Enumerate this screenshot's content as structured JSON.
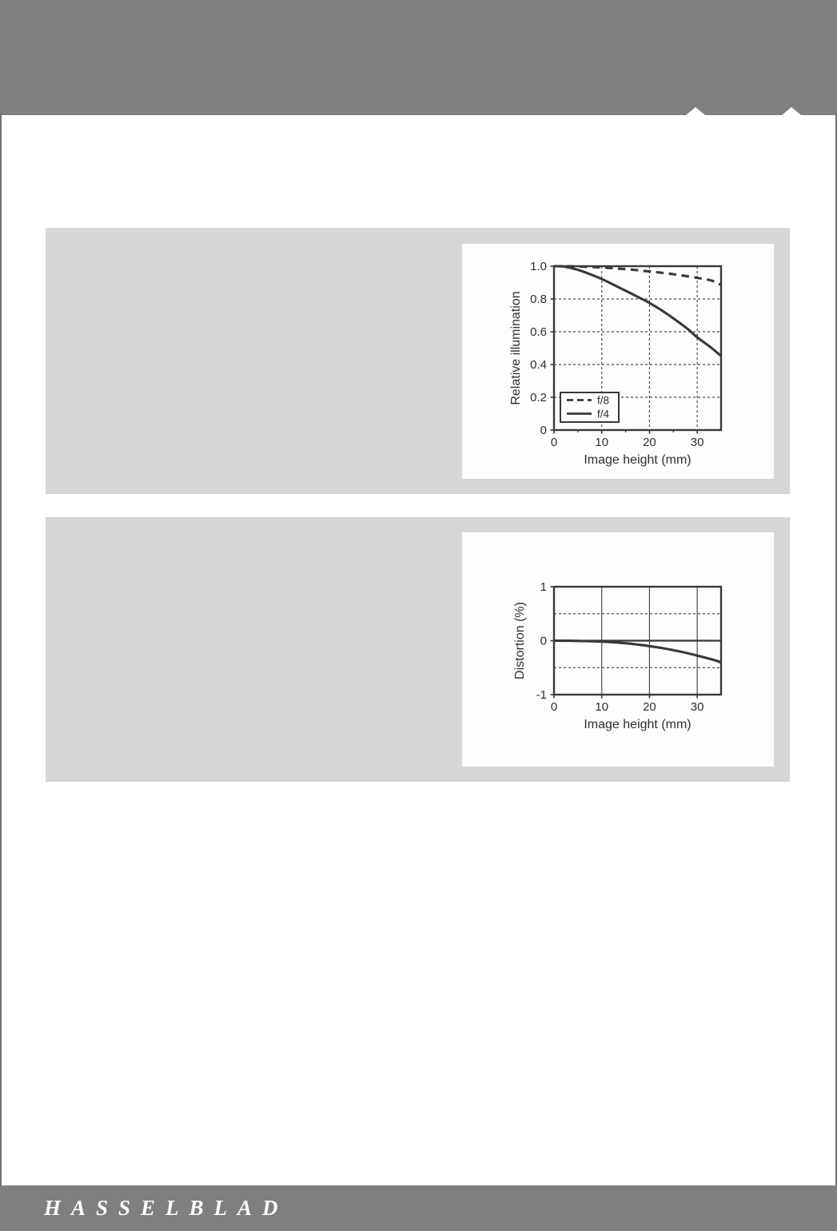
{
  "page": {
    "band_color": "#7d7f80",
    "panel_color": "#d5d6d8",
    "edge_line_color": "#6e7071",
    "chart_background": "#fdfdfd",
    "chart_ink": "#383838",
    "chart_grid_color": "#4d4d4d",
    "chart_text_color": "#2e2e2e",
    "footer": {
      "logo": "HASSELBLAD",
      "text_color": "#ffffff"
    }
  },
  "chart_data": [
    {
      "type": "line",
      "title": "",
      "xlabel": "Image height (mm)",
      "ylabel": "Relative illumination",
      "xlim": [
        0,
        35
      ],
      "ylim": [
        0,
        1
      ],
      "grid": "dashed",
      "legend_position": "lower-left",
      "xticks": [
        {
          "v": 0,
          "label": "0"
        },
        {
          "v": 10,
          "label": "10"
        },
        {
          "v": 20,
          "label": "20"
        },
        {
          "v": 30,
          "label": "30"
        }
      ],
      "xticks_minor": [
        5,
        15,
        25
      ],
      "yticks": [
        {
          "v": 0,
          "label": "0"
        },
        {
          "v": 0.2,
          "label": "0.2"
        },
        {
          "v": 0.4,
          "label": "0.4"
        },
        {
          "v": 0.6,
          "label": "0.6"
        },
        {
          "v": 0.8,
          "label": "0.8"
        },
        {
          "v": 1,
          "label": "1.0"
        }
      ],
      "grid_vertical": [
        10,
        20,
        30
      ],
      "grid_horizontal": [
        0.2,
        0.4,
        0.6,
        0.8
      ],
      "grid_style": {
        "vertical": "dashed",
        "horizontal": "dashed"
      },
      "show_legend": true,
      "series": [
        {
          "name": "f/8",
          "style": "dashed",
          "points": [
            [
              0,
              1.0
            ],
            [
              5,
              0.998
            ],
            [
              10,
              0.992
            ],
            [
              15,
              0.982
            ],
            [
              20,
              0.968
            ],
            [
              25,
              0.951
            ],
            [
              30,
              0.929
            ],
            [
              33,
              0.912
            ],
            [
              35,
              0.886
            ]
          ]
        },
        {
          "name": "f/4",
          "style": "solid",
          "points": [
            [
              0,
              1.0
            ],
            [
              2,
              0.998
            ],
            [
              5,
              0.978
            ],
            [
              8,
              0.946
            ],
            [
              10,
              0.922
            ],
            [
              13,
              0.879
            ],
            [
              15,
              0.85
            ],
            [
              18,
              0.806
            ],
            [
              20,
              0.776
            ],
            [
              23,
              0.722
            ],
            [
              25,
              0.682
            ],
            [
              28,
              0.617
            ],
            [
              30,
              0.566
            ],
            [
              33,
              0.501
            ],
            [
              35,
              0.452
            ]
          ]
        }
      ]
    },
    {
      "type": "line",
      "title": "",
      "xlabel": "Image height (mm)",
      "ylabel": "Distortion (%)",
      "xlim": [
        0,
        35
      ],
      "ylim": [
        -1,
        1
      ],
      "grid": "mixed",
      "xticks": [
        {
          "v": 0,
          "label": "0"
        },
        {
          "v": 10,
          "label": "10"
        },
        {
          "v": 20,
          "label": "20"
        },
        {
          "v": 30,
          "label": "30"
        }
      ],
      "xticks_minor": [],
      "yticks": [
        {
          "v": 1,
          "label": "1"
        },
        {
          "v": 0,
          "label": "0"
        },
        {
          "v": -1,
          "label": "-1"
        }
      ],
      "grid_vertical": [
        10,
        20,
        30
      ],
      "grid_horizontal": [
        0.5,
        -0.5
      ],
      "grid_style": {
        "vertical": "solid",
        "horizontal": "dashed"
      },
      "zero_line": true,
      "show_legend": false,
      "series": [
        {
          "name": "distortion",
          "style": "solid",
          "points": [
            [
              0,
              0
            ],
            [
              3,
              -0.002
            ],
            [
              6,
              -0.007
            ],
            [
              9,
              -0.014
            ],
            [
              12,
              -0.026
            ],
            [
              15,
              -0.048
            ],
            [
              18,
              -0.077
            ],
            [
              20,
              -0.1
            ],
            [
              23,
              -0.142
            ],
            [
              25,
              -0.176
            ],
            [
              28,
              -0.232
            ],
            [
              30,
              -0.276
            ],
            [
              33,
              -0.345
            ],
            [
              35,
              -0.402
            ]
          ]
        }
      ]
    }
  ]
}
